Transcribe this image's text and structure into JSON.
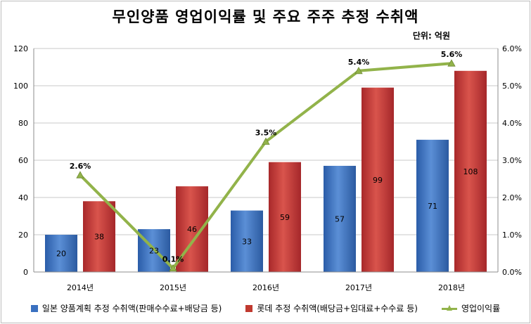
{
  "chart_data": {
    "type": "bar",
    "title": "무인양품 영업이익률 및 주요 주주 추정 수취액",
    "unit_label": "단위: 억원",
    "categories": [
      "2014년",
      "2015년",
      "2016년",
      "2017년",
      "2018년"
    ],
    "series": [
      {
        "name": "일본 양품계획 추정 수취액(판매수수료+배당금 등)",
        "type": "bar",
        "axis": "left",
        "color": "#3a70c0",
        "values": [
          20,
          23,
          33,
          57,
          71
        ]
      },
      {
        "name": "롯데 추정 수취액(배당금+임대료+수수료 등)",
        "type": "bar",
        "axis": "left",
        "color": "#c0392f",
        "values": [
          38,
          46,
          59,
          99,
          108
        ]
      },
      {
        "name": "영업이익률",
        "type": "line",
        "axis": "right",
        "color": "#92b34a",
        "values": [
          2.6,
          0.1,
          3.5,
          5.4,
          5.6
        ],
        "labels": [
          "2.6%",
          "0.1%",
          "3.5%",
          "5.4%",
          "5.6%"
        ]
      }
    ],
    "ylim": [
      0,
      120
    ],
    "yticks": [
      "0",
      "20",
      "40",
      "60",
      "80",
      "100",
      "120"
    ],
    "y2lim": [
      0,
      6
    ],
    "y2ticks": [
      "0.0%",
      "1.0%",
      "2.0%",
      "3.0%",
      "4.0%",
      "5.0%",
      "6.0%"
    ],
    "grid": true,
    "legend_position": "bottom"
  }
}
